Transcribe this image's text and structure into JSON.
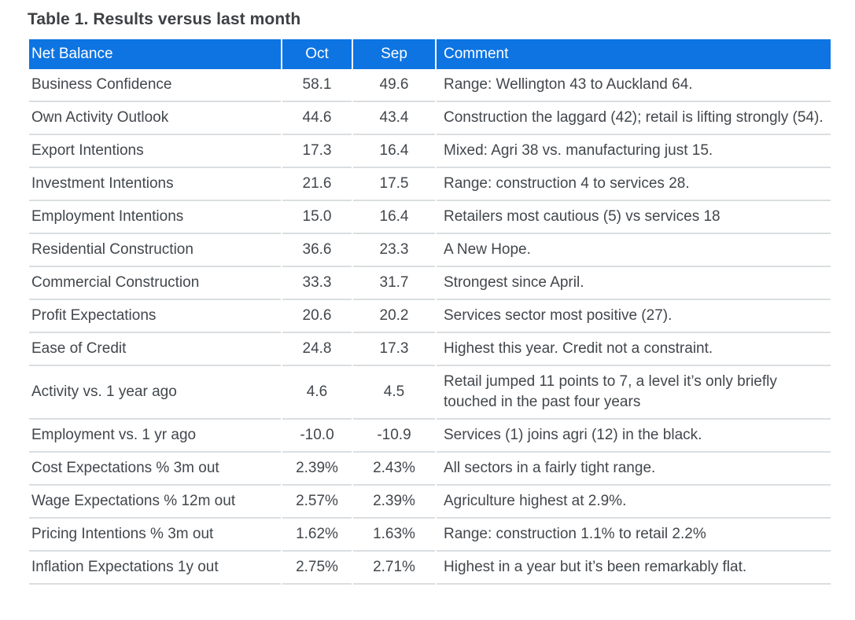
{
  "title": "Table 1. Results versus last month",
  "colors": {
    "header_bg": "#0d74e2",
    "header_text": "#ffffff",
    "title_text": "#3d4144",
    "body_text": "#42474c",
    "row_border": "#dadee1"
  },
  "chart_data": {
    "type": "table",
    "title": "Table 1. Results versus last month",
    "columns": [
      "Net Balance",
      "Oct",
      "Sep",
      "Comment"
    ],
    "rows": [
      [
        "Business Confidence",
        "58.1",
        "49.6",
        "Range: Wellington 43 to Auckland 64."
      ],
      [
        "Own Activity Outlook",
        "44.6",
        "43.4",
        "Construction the laggard (42); retail is lifting strongly (54)."
      ],
      [
        "Export Intentions",
        "17.3",
        "16.4",
        "Mixed: Agri 38 vs. manufacturing just 15."
      ],
      [
        "Investment Intentions",
        "21.6",
        "17.5",
        "Range: construction 4 to services 28."
      ],
      [
        "Employment Intentions",
        "15.0",
        "16.4",
        "Retailers most cautious (5) vs services 18"
      ],
      [
        "Residential Construction",
        "36.6",
        "23.3",
        "A New Hope."
      ],
      [
        "Commercial Construction",
        "33.3",
        "31.7",
        "Strongest since April."
      ],
      [
        "Profit Expectations",
        "20.6",
        "20.2",
        "Services sector most positive (27)."
      ],
      [
        "Ease of Credit",
        "24.8",
        "17.3",
        "Highest this year. Credit not a constraint."
      ],
      [
        "Activity vs. 1 year ago",
        "4.6",
        "4.5",
        "Retail jumped 11 points to 7, a level it’s only briefly touched in the past four years"
      ],
      [
        "Employment vs. 1 yr ago",
        "-10.0",
        "-10.9",
        "Services (1) joins agri (12) in the black."
      ],
      [
        "Cost Expectations % 3m out",
        "2.39%",
        "2.43%",
        "All sectors in a fairly tight range."
      ],
      [
        "Wage Expectations % 12m out",
        "2.57%",
        "2.39%",
        "Agriculture highest at 2.9%."
      ],
      [
        "Pricing Intentions % 3m out",
        "1.62%",
        "1.63%",
        "Range: construction 1.1% to retail 2.2%"
      ],
      [
        "Inflation Expectations 1y out",
        "2.75%",
        "2.71%",
        "Highest in a year but it’s been remarkably flat."
      ]
    ]
  }
}
